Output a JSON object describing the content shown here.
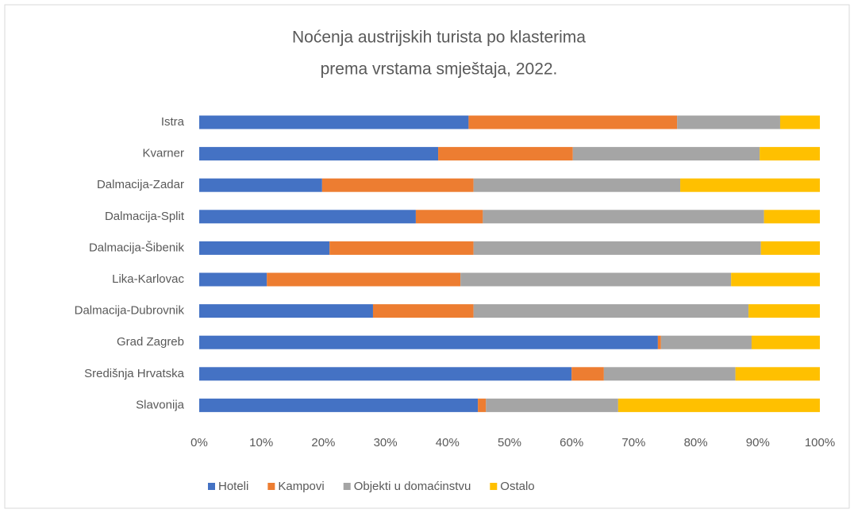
{
  "chart_data": {
    "type": "stacked-bar-horizontal",
    "title": [
      "Noćenja austrijskih turista po klasterima",
      "prema vrstama smještaja, 2022."
    ],
    "categories": [
      "Istra",
      "Kvarner",
      "Dalmacija-Zadar",
      "Dalmacija-Split",
      "Dalmacija-Šibenik",
      "Lika-Karlovac",
      "Dalmacija-Dubrovnik",
      "Grad Zagreb",
      "Središnja Hrvatska",
      "Slavonija"
    ],
    "series": [
      {
        "name": "Hoteli",
        "color": "#4472c4",
        "values": [
          43.4,
          38.5,
          19.8,
          34.9,
          21.0,
          10.9,
          28.0,
          73.9,
          60.0,
          44.9
        ]
      },
      {
        "name": "Kampovi",
        "color": "#ed7d31",
        "values": [
          33.6,
          21.7,
          24.4,
          10.8,
          23.2,
          31.2,
          16.2,
          0.5,
          5.2,
          1.3
        ]
      },
      {
        "name": "Objekti u domaćinstvu",
        "color": "#a5a5a5",
        "values": [
          16.6,
          30.1,
          33.3,
          45.3,
          46.3,
          43.6,
          44.3,
          14.6,
          21.2,
          21.3
        ]
      },
      {
        "name": "Ostalo",
        "color": "#ffc000",
        "values": [
          6.4,
          9.7,
          22.5,
          9.0,
          9.5,
          14.3,
          11.5,
          11.0,
          13.6,
          32.5
        ]
      }
    ],
    "xlim": [
      0,
      100
    ],
    "xticks": [
      {
        "value": 0,
        "label": "0%"
      },
      {
        "value": 10,
        "label": "10%"
      },
      {
        "value": 20,
        "label": "20%"
      },
      {
        "value": 30,
        "label": "30%"
      },
      {
        "value": 40,
        "label": "40%"
      },
      {
        "value": 50,
        "label": "50%"
      },
      {
        "value": 60,
        "label": "60%"
      },
      {
        "value": 70,
        "label": "70%"
      },
      {
        "value": 80,
        "label": "80%"
      },
      {
        "value": 90,
        "label": "90%"
      },
      {
        "value": 100,
        "label": "100%"
      }
    ],
    "legend": "bottom"
  }
}
